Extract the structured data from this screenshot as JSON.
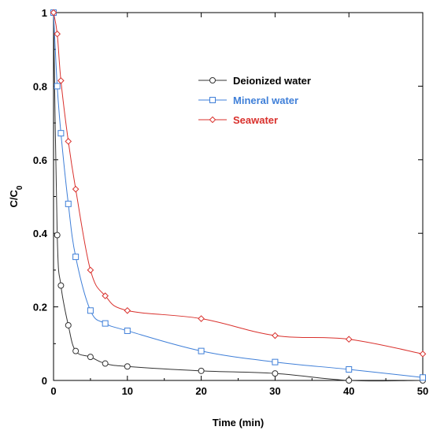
{
  "chart_data": {
    "type": "line",
    "xlabel": "Time (min)",
    "ylabel_main": "C/C",
    "ylabel_sub": "0",
    "xlim": [
      0,
      50
    ],
    "ylim": [
      0,
      1
    ],
    "xticks": [
      "0",
      "10",
      "20",
      "30",
      "40",
      "50"
    ],
    "yticks": [
      "0",
      "0.2",
      "0.4",
      "0.6",
      "0.8",
      "1"
    ],
    "grid": false,
    "legend_position": "top-right",
    "series": [
      {
        "name": "Deionized water",
        "color": "#333333",
        "marker": "circle",
        "x": [
          0,
          0.5,
          1,
          2,
          3,
          5,
          7,
          10,
          20,
          30,
          40,
          50
        ],
        "y": [
          1.0,
          0.395,
          0.258,
          0.15,
          0.08,
          0.064,
          0.046,
          0.038,
          0.026,
          0.019,
          0.0,
          0.0
        ]
      },
      {
        "name": "Mineral water",
        "color": "#3f7fd8",
        "marker": "square",
        "x": [
          0,
          0.5,
          1,
          2,
          3,
          5,
          7,
          10,
          20,
          30,
          40,
          50
        ],
        "y": [
          1.0,
          0.8,
          0.672,
          0.48,
          0.336,
          0.19,
          0.155,
          0.135,
          0.08,
          0.05,
          0.03,
          0.008
        ]
      },
      {
        "name": "Seawater",
        "color": "#d9302c",
        "marker": "diamond",
        "x": [
          0,
          0.5,
          1,
          2,
          3,
          5,
          7,
          10,
          20,
          30,
          40,
          50
        ],
        "y": [
          1.0,
          0.942,
          0.815,
          0.65,
          0.52,
          0.3,
          0.23,
          0.19,
          0.168,
          0.122,
          0.112,
          0.072
        ]
      }
    ]
  }
}
